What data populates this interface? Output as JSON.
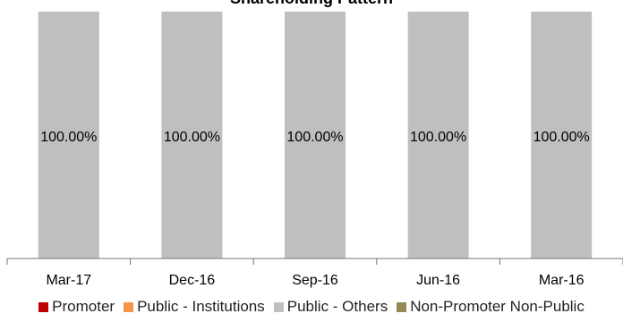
{
  "chart_data": {
    "type": "bar",
    "stacked": true,
    "title": "Shareholding Pattern",
    "categories": [
      "Mar-17",
      "Dec-16",
      "Sep-16",
      "Jun-16",
      "Mar-16"
    ],
    "ylim": [
      0,
      100
    ],
    "grid": false,
    "legend_position": "bottom",
    "series": [
      {
        "name": "Promoter",
        "color": "#c00000",
        "values": [
          0,
          0,
          0,
          0,
          0
        ]
      },
      {
        "name": "Public - Institutions",
        "color": "#f79646",
        "values": [
          0,
          0,
          0,
          0,
          0
        ]
      },
      {
        "name": "Public - Others",
        "color": "#bfbfbf",
        "values": [
          100,
          100,
          100,
          100,
          100
        ]
      },
      {
        "name": "Non-Promoter Non-Public",
        "color": "#948a54",
        "values": [
          0,
          0,
          0,
          0,
          0
        ]
      }
    ],
    "data_labels": [
      "100.00%",
      "100.00%",
      "100.00%",
      "100.00%",
      "100.00%"
    ]
  }
}
